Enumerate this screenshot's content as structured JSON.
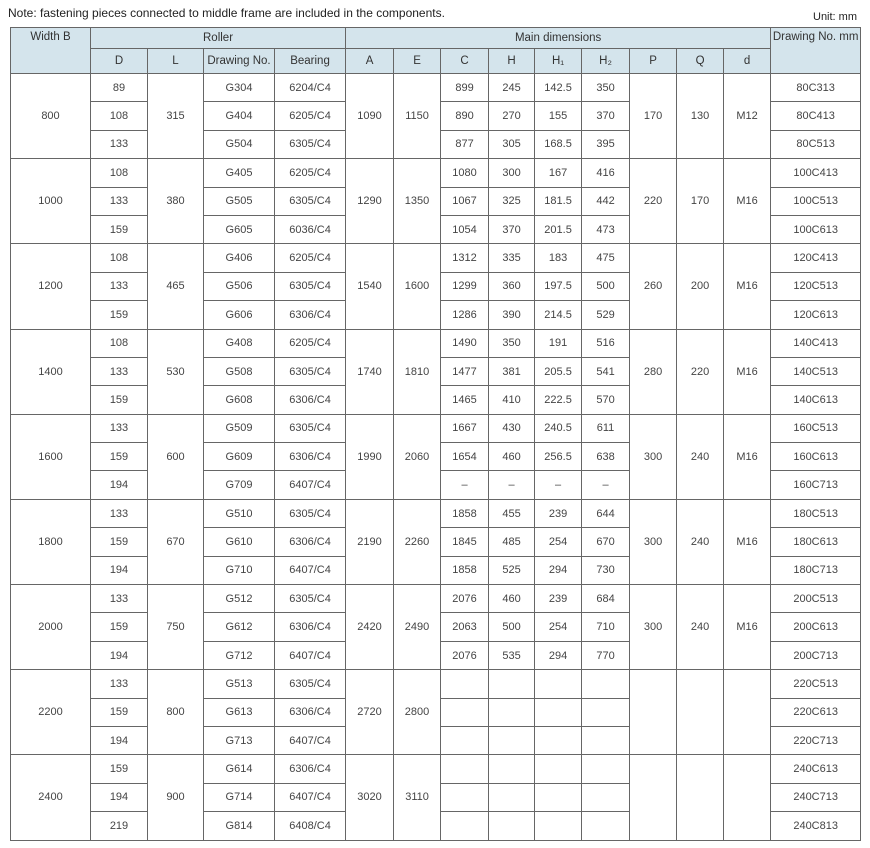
{
  "note": "Note: fastening pieces connected to middle frame are included in the components.",
  "unit": "Unit: mm",
  "header": {
    "width": "Width B",
    "roller": "Roller",
    "main": "Main dimensions",
    "drawing_no": "Drawing No. mm",
    "sub": [
      "D",
      "L",
      "Drawing No.",
      "Bearing",
      "A",
      "E",
      "C",
      "H",
      "H₁",
      "H₂",
      "P",
      "Q",
      "d"
    ]
  },
  "groups": [
    {
      "B": "800",
      "L": "315",
      "A": "1090",
      "E": "1150",
      "P": "170",
      "Q": "130",
      "d": "M12",
      "rows": [
        [
          "89",
          "G304",
          "6204/C4",
          "899",
          "245",
          "142.5",
          "350",
          "80C313"
        ],
        [
          "108",
          "G404",
          "6205/C4",
          "890",
          "270",
          "155",
          "370",
          "80C413"
        ],
        [
          "133",
          "G504",
          "6305/C4",
          "877",
          "305",
          "168.5",
          "395",
          "80C513"
        ]
      ]
    },
    {
      "B": "1000",
      "L": "380",
      "A": "1290",
      "E": "1350",
      "P": "220",
      "Q": "170",
      "d": "M16",
      "rows": [
        [
          "108",
          "G405",
          "6205/C4",
          "1080",
          "300",
          "167",
          "416",
          "100C413"
        ],
        [
          "133",
          "G505",
          "6305/C4",
          "1067",
          "325",
          "181.5",
          "442",
          "100C513"
        ],
        [
          "159",
          "G605",
          "6036/C4",
          "1054",
          "370",
          "201.5",
          "473",
          "100C613"
        ]
      ]
    },
    {
      "B": "1200",
      "L": "465",
      "A": "1540",
      "E": "1600",
      "P": "260",
      "Q": "200",
      "d": "M16",
      "rows": [
        [
          "108",
          "G406",
          "6205/C4",
          "1312",
          "335",
          "183",
          "475",
          "120C413"
        ],
        [
          "133",
          "G506",
          "6305/C4",
          "1299",
          "360",
          "197.5",
          "500",
          "120C513"
        ],
        [
          "159",
          "G606",
          "6306/C4",
          "1286",
          "390",
          "214.5",
          "529",
          "120C613"
        ]
      ]
    },
    {
      "B": "1400",
      "L": "530",
      "A": "1740",
      "E": "1810",
      "P": "280",
      "Q": "220",
      "d": "M16",
      "rows": [
        [
          "108",
          "G408",
          "6205/C4",
          "1490",
          "350",
          "191",
          "516",
          "140C413"
        ],
        [
          "133",
          "G508",
          "6305/C4",
          "1477",
          "381",
          "205.5",
          "541",
          "140C513"
        ],
        [
          "159",
          "G608",
          "6306/C4",
          "1465",
          "410",
          "222.5",
          "570",
          "140C613"
        ]
      ]
    },
    {
      "B": "1600",
      "L": "600",
      "A": "1990",
      "E": "2060",
      "P": "300",
      "Q": "240",
      "d": "M16",
      "rows": [
        [
          "133",
          "G509",
          "6305/C4",
          "1667",
          "430",
          "240.5",
          "611",
          "160C513"
        ],
        [
          "159",
          "G609",
          "6306/C4",
          "1654",
          "460",
          "256.5",
          "638",
          "160C613"
        ],
        [
          "194",
          "G709",
          "6407/C4",
          "–",
          "–",
          "–",
          "–",
          "160C713"
        ]
      ]
    },
    {
      "B": "1800",
      "L": "670",
      "A": "2190",
      "E": "2260",
      "P": "300",
      "Q": "240",
      "d": "M16",
      "rows": [
        [
          "133",
          "G510",
          "6305/C4",
          "1858",
          "455",
          "239",
          "644",
          "180C513"
        ],
        [
          "159",
          "G610",
          "6306/C4",
          "1845",
          "485",
          "254",
          "670",
          "180C613"
        ],
        [
          "194",
          "G710",
          "6407/C4",
          "1858",
          "525",
          "294",
          "730",
          "180C713"
        ]
      ]
    },
    {
      "B": "2000",
      "L": "750",
      "A": "2420",
      "E": "2490",
      "P": "300",
      "Q": "240",
      "d": "M16",
      "rows": [
        [
          "133",
          "G512",
          "6305/C4",
          "2076",
          "460",
          "239",
          "684",
          "200C513"
        ],
        [
          "159",
          "G612",
          "6306/C4",
          "2063",
          "500",
          "254",
          "710",
          "200C613"
        ],
        [
          "194",
          "G712",
          "6407/C4",
          "2076",
          "535",
          "294",
          "770",
          "200C713"
        ]
      ]
    },
    {
      "B": "2200",
      "L": "800",
      "A": "2720",
      "E": "2800",
      "P": "",
      "Q": "",
      "d": "",
      "rows": [
        [
          "133",
          "G513",
          "6305/C4",
          "",
          "",
          "",
          "",
          "220C513"
        ],
        [
          "159",
          "G613",
          "6306/C4",
          "",
          "",
          "",
          "",
          "220C613"
        ],
        [
          "194",
          "G713",
          "6407/C4",
          "",
          "",
          "",
          "",
          "220C713"
        ]
      ]
    },
    {
      "B": "2400",
      "L": "900",
      "A": "3020",
      "E": "3110",
      "P": "",
      "Q": "",
      "d": "",
      "rows": [
        [
          "159",
          "G614",
          "6306/C4",
          "",
          "",
          "",
          "",
          "240C613"
        ],
        [
          "194",
          "G714",
          "6407/C4",
          "",
          "",
          "",
          "",
          "240C713"
        ],
        [
          "219",
          "G814",
          "6408/C4",
          "",
          "",
          "",
          "",
          "240C813"
        ]
      ]
    }
  ]
}
